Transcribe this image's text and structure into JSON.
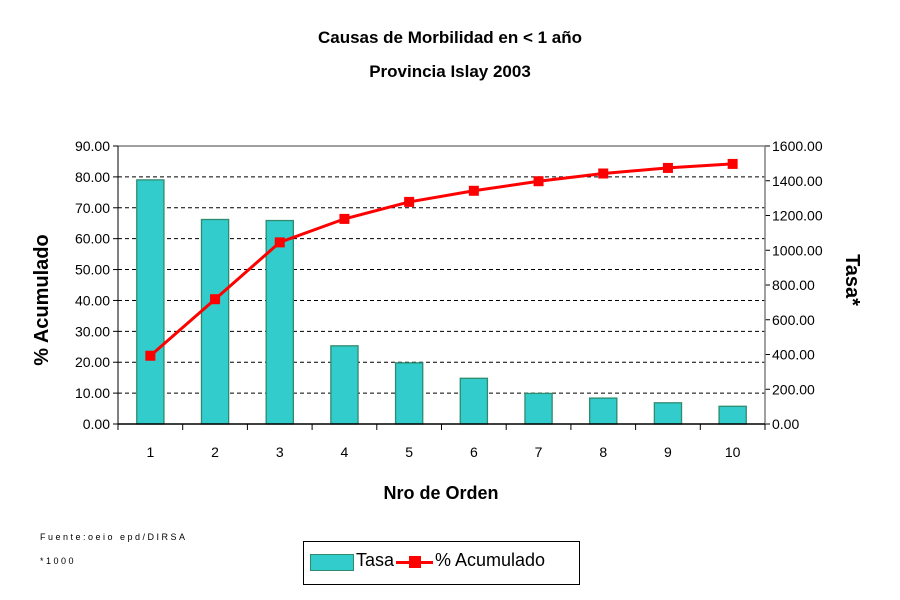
{
  "chart_data": {
    "type": "bar",
    "title": "Causas de Morbilidad en < 1 año",
    "subtitle": "Provincia Islay 2003",
    "xlabel": "Nro de Orden",
    "ylabel_left": "% Acumulado",
    "ylabel_right": "Tasa*",
    "categories": [
      "1",
      "2",
      "3",
      "4",
      "5",
      "6",
      "7",
      "8",
      "9",
      "10"
    ],
    "ylim_left": [
      0,
      90
    ],
    "ylim_right": [
      0,
      1600
    ],
    "yticks_left": [
      "0.00",
      "10.00",
      "20.00",
      "30.00",
      "40.00",
      "50.00",
      "60.00",
      "70.00",
      "80.00",
      "90.00"
    ],
    "yticks_right": [
      "0.00",
      "200.00",
      "400.00",
      "600.00",
      "800.00",
      "1000.00",
      "1200.00",
      "1400.00",
      "1600.00"
    ],
    "grid": true,
    "legend_placement": "bottom",
    "series": [
      {
        "name": "Tasa",
        "type": "bar",
        "axis": "right",
        "color": "#33cccc",
        "values": [
          1405,
          1177,
          1171,
          450,
          352,
          263,
          176,
          149,
          122,
          102
        ]
      },
      {
        "name": "% Acumulado",
        "type": "line",
        "axis": "left",
        "color": "#ff0000",
        "values": [
          22.1,
          40.4,
          58.8,
          66.4,
          71.9,
          75.5,
          78.6,
          81.1,
          82.9,
          84.2
        ]
      }
    ]
  },
  "notes": {
    "source": "Fuente:oeio epd/DIRSA",
    "footnote": "*1000"
  }
}
